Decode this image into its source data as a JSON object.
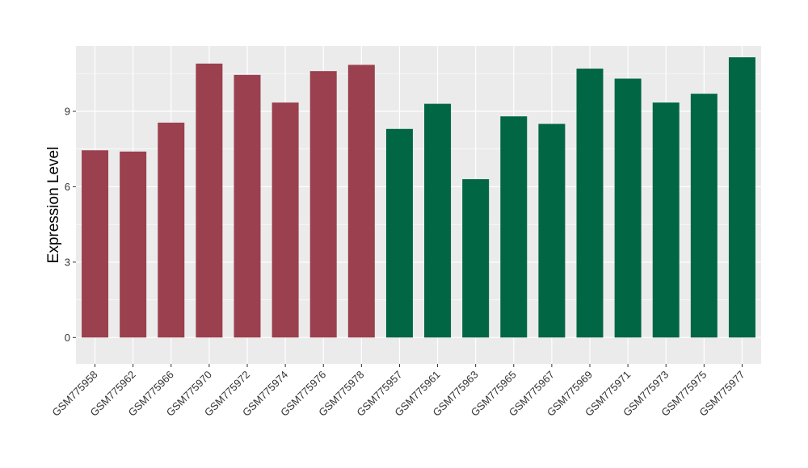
{
  "chart_data": {
    "type": "bar",
    "title": "",
    "xlabel": "",
    "ylabel": "Expression Level",
    "ylim": [
      -1.05,
      11.6
    ],
    "yticks": [
      0,
      3,
      6,
      9
    ],
    "grid": true,
    "legend": "none",
    "categories": [
      "GSM775958",
      "GSM775962",
      "GSM775966",
      "GSM775970",
      "GSM775972",
      "GSM775974",
      "GSM775976",
      "GSM775978",
      "GSM775957",
      "GSM775961",
      "GSM775963",
      "GSM775965",
      "GSM775967",
      "GSM775969",
      "GSM775971",
      "GSM775973",
      "GSM775975",
      "GSM775977"
    ],
    "values": [
      7.45,
      7.4,
      8.55,
      10.9,
      10.45,
      9.35,
      10.6,
      10.85,
      8.3,
      9.3,
      6.3,
      8.8,
      8.5,
      10.7,
      10.3,
      9.35,
      9.7,
      11.15
    ],
    "bar_groups": [
      "g1",
      "g1",
      "g1",
      "g1",
      "g1",
      "g1",
      "g1",
      "g1",
      "g2",
      "g2",
      "g2",
      "g2",
      "g2",
      "g2",
      "g2",
      "g2",
      "g2",
      "g2"
    ],
    "colors": {
      "g1": "#9B404E",
      "g2": "#006643",
      "panel": "#EBEBEB",
      "grid": "#FFFFFF",
      "tick": "#333333"
    }
  }
}
